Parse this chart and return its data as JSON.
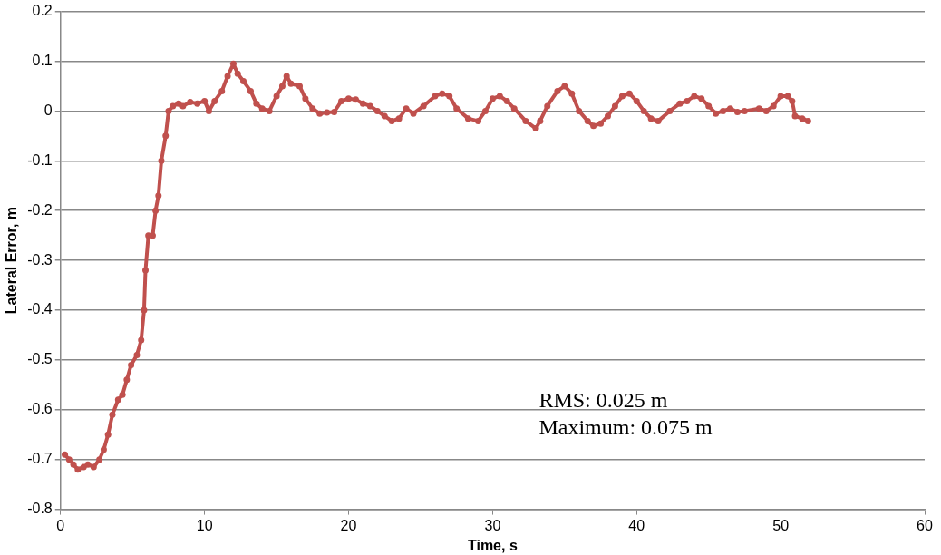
{
  "chart_data": {
    "type": "line",
    "xlabel": "Time, s",
    "ylabel": "Lateral Error, m",
    "xlim": [
      0,
      60
    ],
    "xticks": [
      0,
      10,
      20,
      30,
      40,
      50,
      60
    ],
    "ylim": [
      -0.8,
      0.2
    ],
    "yticks": [
      -0.8,
      -0.7,
      -0.6,
      -0.5,
      -0.4,
      -0.3,
      -0.2,
      -0.1,
      0,
      0.1,
      0.2
    ],
    "grid": "y",
    "legend": false,
    "marker": "circle",
    "line_style": "solid",
    "annotations": [
      "RMS: 0.025 m\nMaximum: 0.075 m"
    ],
    "series": [
      {
        "color": "#c0504d",
        "x": [
          0.3,
          0.6,
          0.9,
          1.2,
          1.6,
          1.9,
          2.3,
          2.7,
          3.0,
          3.3,
          3.6,
          4.0,
          4.3,
          4.6,
          4.9,
          5.3,
          5.6,
          5.8,
          5.9,
          6.1,
          6.4,
          6.6,
          6.8,
          7.0,
          7.3,
          7.5,
          7.8,
          8.2,
          8.5,
          9,
          9.5,
          10,
          10.3,
          10.7,
          11.2,
          11.6,
          12,
          12.3,
          12.7,
          13.2,
          13.6,
          14,
          14.5,
          15,
          15.4,
          15.7,
          16,
          16.6,
          17,
          17.5,
          18,
          18.5,
          19,
          19.5,
          20,
          20.5,
          21,
          21.5,
          22,
          22.5,
          23,
          23.5,
          24,
          24.5,
          25.2,
          26,
          26.5,
          27,
          27.5,
          28.3,
          29,
          29.5,
          30,
          30.5,
          31,
          31.5,
          32.3,
          33,
          33.3,
          33.8,
          34.5,
          35,
          35.5,
          36,
          36.6,
          37,
          37.5,
          38,
          38.5,
          39,
          39.5,
          40,
          40.5,
          41,
          41.5,
          42.3,
          43,
          43.5,
          44,
          44.5,
          45,
          45.5,
          46,
          46.5,
          47,
          47.5,
          48.5,
          49,
          49.5,
          50,
          50.5,
          50.8,
          51,
          51.5,
          51.9
        ],
        "values": [
          -0.69,
          -0.7,
          -0.71,
          -0.72,
          -0.715,
          -0.71,
          -0.715,
          -0.7,
          -0.68,
          -0.65,
          -0.61,
          -0.58,
          -0.57,
          -0.54,
          -0.51,
          -0.49,
          -0.46,
          -0.4,
          -0.32,
          -0.25,
          -0.25,
          -0.2,
          -0.17,
          -0.1,
          -0.05,
          0,
          0.01,
          0.015,
          0.01,
          0.018,
          0.015,
          0.02,
          0,
          0.02,
          0.04,
          0.07,
          0.095,
          0.075,
          0.06,
          0.04,
          0.015,
          0.005,
          0,
          0.03,
          0.05,
          0.07,
          0.055,
          0.05,
          0.025,
          0.005,
          -0.005,
          -0.003,
          -0.002,
          0.02,
          0.025,
          0.023,
          0.015,
          0.01,
          0,
          -0.01,
          -0.02,
          -0.015,
          0.005,
          -0.005,
          0.01,
          0.03,
          0.035,
          0.03,
          0.005,
          -0.015,
          -0.02,
          0,
          0.025,
          0.03,
          0.02,
          0.005,
          -0.02,
          -0.035,
          -0.02,
          0.01,
          0.04,
          0.05,
          0.035,
          0,
          -0.02,
          -0.03,
          -0.025,
          -0.01,
          0.01,
          0.03,
          0.035,
          0.02,
          0,
          -0.015,
          -0.02,
          0,
          0.015,
          0.02,
          0.03,
          0.025,
          0.01,
          -0.005,
          0,
          0.005,
          -0.002,
          0,
          0.005,
          0,
          0.01,
          0.03,
          0.03,
          0.02,
          -0.01,
          -0.015,
          -0.02
        ]
      }
    ]
  }
}
